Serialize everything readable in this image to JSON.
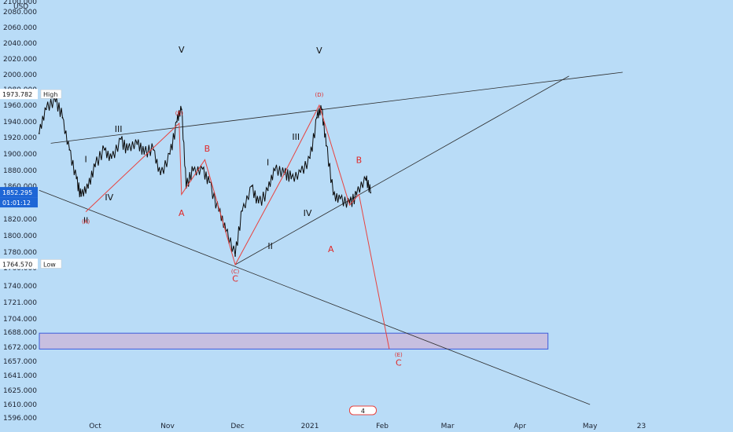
{
  "colors": {
    "background": "#b9dcf7",
    "price": "#0a0a0a",
    "wave_line": "#e8433f",
    "channel_line": "#2b2b2b",
    "target_zone_fill": "#c7bfe0",
    "target_zone_border": "#3b5bdb",
    "current_price_badge": "#1e66d6"
  },
  "chart_data": {
    "type": "line",
    "title": "",
    "ylabel": "USD",
    "ylim": [
      1596,
      2100
    ],
    "y_ticks": [
      "1596.000",
      "1610.000",
      "1625.000",
      "1641.000",
      "1657.000",
      "1672.000",
      "1688.000",
      "1704.000",
      "1721.000",
      "1740.000",
      "1760.000",
      "1780.000",
      "1800.000",
      "1820.000",
      "1840.000",
      "1860.000",
      "1880.000",
      "1900.000",
      "1920.000",
      "1940.000",
      "1960.000",
      "1980.000",
      "2000.000",
      "2020.000",
      "2040.000",
      "2060.000",
      "2080.000",
      "2100.000"
    ],
    "x_ticks": [
      "Oct",
      "Nov",
      "Dec",
      "2021",
      "Feb",
      "Mar",
      "Apr",
      "May",
      "23"
    ],
    "axis_unit": "USD",
    "series": [
      {
        "x": [
          "2020-09-07",
          "2020-09-10",
          "2020-09-14",
          "2020-09-17",
          "2020-09-20",
          "2020-09-23",
          "2020-09-25",
          "2020-09-28",
          "2020-10-01",
          "2020-10-05",
          "2020-10-08",
          "2020-10-12",
          "2020-10-15",
          "2020-10-19",
          "2020-10-22",
          "2020-10-26",
          "2020-10-29",
          "2020-11-02",
          "2020-11-05",
          "2020-11-07",
          "2020-11-09",
          "2020-11-12",
          "2020-11-16",
          "2020-11-19",
          "2020-11-23",
          "2020-11-26",
          "2020-11-30",
          "2020-12-03",
          "2020-12-07",
          "2020-12-10",
          "2020-12-14",
          "2020-12-17",
          "2020-12-21",
          "2020-12-24",
          "2020-12-28",
          "2021-01-01",
          "2021-01-04",
          "2021-01-06",
          "2021-01-08",
          "2021-01-11",
          "2021-01-14",
          "2021-01-18",
          "2021-01-21",
          "2021-01-25",
          "2021-01-27"
        ],
        "values": [
          1925,
          1955,
          1965,
          1945,
          1905,
          1870,
          1848,
          1858,
          1885,
          1905,
          1895,
          1918,
          1905,
          1912,
          1900,
          1905,
          1875,
          1900,
          1940,
          1955,
          1858,
          1880,
          1882,
          1865,
          1830,
          1805,
          1775,
          1830,
          1860,
          1840,
          1855,
          1880,
          1875,
          1870,
          1878,
          1895,
          1945,
          1955,
          1910,
          1850,
          1845,
          1840,
          1850,
          1868,
          1852
        ]
      }
    ],
    "price_labels": {
      "high_value": "1973.782",
      "high_label": "High",
      "low_value": "1764.570",
      "low_label": "Low",
      "current_value": "1852.295",
      "countdown": "01:01:12"
    },
    "red_wave_path": {
      "x": [
        "2020-09-27",
        "2020-11-06",
        "2020-11-07",
        "2020-11-17",
        "2020-11-30",
        "2020-12-20",
        "2021-01-05",
        "2021-01-18",
        "2021-01-22",
        "2021-02-04"
      ],
      "values": [
        1829,
        1938,
        1850,
        1893,
        1764,
        1870,
        1960,
        1837,
        1850,
        1670
      ]
    },
    "channel_lines": [
      {
        "x": [
          "2020-09-07",
          "2021-05-01"
        ],
        "values": [
          1855,
          1610
        ]
      },
      {
        "x": [
          "2020-09-12",
          "2021-05-15"
        ],
        "values": [
          1913,
          2003
        ]
      },
      {
        "x": [
          "2020-11-30",
          "2021-04-22"
        ],
        "values": [
          1764,
          1998
        ]
      }
    ],
    "target_zone": {
      "x": [
        "2020-09-01",
        "2021-04-13"
      ],
      "values": [
        1670,
        1687
      ]
    },
    "annotations": [
      {
        "text": "V",
        "x": "2020-11-07",
        "y": 2028,
        "color": "black"
      },
      {
        "text": "V",
        "x": "2021-01-05",
        "y": 2027,
        "color": "black"
      },
      {
        "text": "(D)",
        "x": "2021-01-05",
        "y": 1971,
        "color": "red",
        "small": true
      },
      {
        "text": "III",
        "x": "2020-10-11",
        "y": 1927,
        "color": "black"
      },
      {
        "text": "III",
        "x": "2020-12-26",
        "y": 1917,
        "color": "black"
      },
      {
        "text": "I",
        "x": "2020-09-27",
        "y": 1890,
        "color": "black"
      },
      {
        "text": "I",
        "x": "2020-12-14",
        "y": 1886,
        "color": "black"
      },
      {
        "text": "IV",
        "x": "2020-10-07",
        "y": 1843,
        "color": "black"
      },
      {
        "text": "IV",
        "x": "2020-12-31",
        "y": 1824,
        "color": "black"
      },
      {
        "text": "II",
        "x": "2020-09-27",
        "y": 1815,
        "color": "black"
      },
      {
        "text": "II",
        "x": "2020-12-15",
        "y": 1784,
        "color": "black"
      },
      {
        "text": "B",
        "x": "2020-11-18",
        "y": 1903,
        "color": "red"
      },
      {
        "text": "B",
        "x": "2021-01-22",
        "y": 1889,
        "color": "red"
      },
      {
        "text": "A",
        "x": "2020-11-07",
        "y": 1824,
        "color": "red"
      },
      {
        "text": "A",
        "x": "2021-01-10",
        "y": 1780,
        "color": "red"
      },
      {
        "text": "C",
        "x": "2020-11-30",
        "y": 1745,
        "color": "red"
      },
      {
        "text": "C",
        "x": "2021-02-08",
        "y": 1652,
        "color": "red"
      },
      {
        "text": "(A)",
        "x": "2020-09-27",
        "y": 1815,
        "color": "red",
        "small": true
      },
      {
        "text": "(B)",
        "x": "2020-11-06",
        "y": 1948,
        "color": "red",
        "small": true
      },
      {
        "text": "(C)",
        "x": "2020-11-30",
        "y": 1754,
        "color": "red",
        "small": true
      },
      {
        "text": "(E)",
        "x": "2021-02-08",
        "y": 1662,
        "color": "red",
        "small": true
      }
    ],
    "badge": {
      "number": "4"
    }
  }
}
